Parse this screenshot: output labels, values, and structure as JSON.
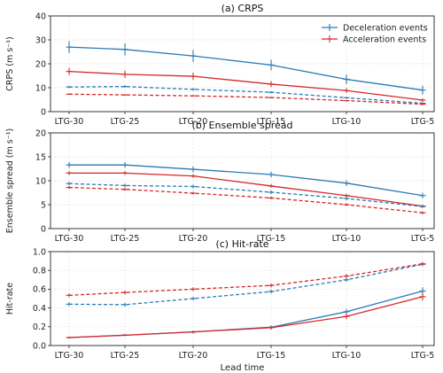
{
  "chart_data": [
    {
      "type": "line",
      "title": "(a) CRPS",
      "ylabel": "CRPS (m s⁻¹)",
      "xlabel": "",
      "ylim": [
        0,
        40
      ],
      "yticks": [
        0,
        10,
        20,
        30,
        40
      ],
      "grid": true,
      "legend": "top-right",
      "legend_entries": [
        {
          "name": "Deceleration events",
          "color": "#2a7ab5"
        },
        {
          "name": "Acceleration events",
          "color": "#d62728"
        }
      ],
      "categories": [
        "LTG-30",
        "LTG-25",
        "LTG-20",
        "LTG-15",
        "LTG-10",
        "LTG-5"
      ],
      "series": [
        {
          "color": "#2a7ab5",
          "style": "solid",
          "values": [
            27,
            26,
            23.3,
            19.5,
            13.5,
            9
          ],
          "errors": [
            2.5,
            2.5,
            2.5,
            2.2,
            2.0,
            1.8
          ]
        },
        {
          "color": "#d62728",
          "style": "solid",
          "values": [
            16.8,
            15.6,
            14.8,
            11.5,
            8.8,
            4.8
          ],
          "errors": [
            1.5,
            1.5,
            1.5,
            1.2,
            1.0,
            0.8
          ]
        },
        {
          "color": "#2a7ab5",
          "style": "dashed",
          "values": [
            10.3,
            10.5,
            9.3,
            8.1,
            5.8,
            3.5
          ],
          "errors": [
            0.5,
            0.5,
            0.5,
            0.5,
            0.4,
            0.3
          ]
        },
        {
          "color": "#d62728",
          "style": "dashed",
          "values": [
            7.3,
            7.0,
            6.6,
            5.9,
            4.6,
            3.1
          ],
          "errors": [
            0.3,
            0.3,
            0.3,
            0.3,
            0.3,
            0.3
          ]
        }
      ]
    },
    {
      "type": "line",
      "title": "(b) Ensemble spread",
      "ylabel": "Ensemble spread (m s⁻¹)",
      "xlabel": "",
      "ylim": [
        0,
        20
      ],
      "yticks": [
        0,
        5,
        10,
        15,
        20
      ],
      "grid": true,
      "categories": [
        "LTG-30",
        "LTG-25",
        "LTG-20",
        "LTG-15",
        "LTG-10",
        "LTG-5"
      ],
      "series": [
        {
          "color": "#2a7ab5",
          "style": "solid",
          "values": [
            13.3,
            13.3,
            12.4,
            11.3,
            9.5,
            6.9
          ],
          "errors": [
            0.6,
            0.6,
            0.6,
            0.6,
            0.6,
            0.6
          ]
        },
        {
          "color": "#d62728",
          "style": "solid",
          "values": [
            11.6,
            11.6,
            11.0,
            8.9,
            6.9,
            4.7
          ],
          "errors": [
            0.4,
            0.4,
            0.4,
            0.4,
            0.4,
            0.3
          ]
        },
        {
          "color": "#2a7ab5",
          "style": "dashed",
          "values": [
            9.4,
            9.0,
            8.8,
            7.6,
            6.3,
            4.6
          ],
          "errors": [
            0.4,
            0.4,
            0.4,
            0.4,
            0.4,
            0.3
          ]
        },
        {
          "color": "#d62728",
          "style": "dashed",
          "values": [
            8.6,
            8.2,
            7.4,
            6.4,
            5.0,
            3.3
          ],
          "errors": [
            0.3,
            0.3,
            0.3,
            0.3,
            0.3,
            0.3
          ]
        }
      ]
    },
    {
      "type": "line",
      "title": "(c) Hit-rate",
      "ylabel": "Hit-rate",
      "xlabel": "Lead time",
      "ylim": [
        0,
        1.0
      ],
      "yticks": [
        0,
        0.2,
        0.4,
        0.6,
        0.8,
        1.0
      ],
      "ytick_labels": [
        "0.0",
        "0.2",
        "0.4",
        "0.6",
        "0.8",
        "1.0"
      ],
      "grid": true,
      "categories": [
        "LTG-30",
        "LTG-25",
        "LTG-20",
        "LTG-15",
        "LTG-10",
        "LTG-5"
      ],
      "series": [
        {
          "color": "#2a7ab5",
          "style": "solid",
          "values": [
            0.085,
            0.11,
            0.145,
            0.195,
            0.36,
            0.58
          ],
          "errors": [
            0.01,
            0.01,
            0.015,
            0.02,
            0.03,
            0.04
          ]
        },
        {
          "color": "#d62728",
          "style": "solid",
          "values": [
            0.085,
            0.11,
            0.145,
            0.19,
            0.31,
            0.52
          ],
          "errors": [
            0.01,
            0.01,
            0.015,
            0.02,
            0.03,
            0.04
          ]
        },
        {
          "color": "#2a7ab5",
          "style": "dashed",
          "values": [
            0.44,
            0.435,
            0.5,
            0.575,
            0.7,
            0.865
          ],
          "errors": [
            0.02,
            0.02,
            0.02,
            0.02,
            0.02,
            0.02
          ]
        },
        {
          "color": "#d62728",
          "style": "dashed",
          "values": [
            0.535,
            0.565,
            0.6,
            0.64,
            0.74,
            0.87
          ],
          "errors": [
            0.02,
            0.02,
            0.02,
            0.02,
            0.02,
            0.02
          ]
        }
      ]
    }
  ]
}
